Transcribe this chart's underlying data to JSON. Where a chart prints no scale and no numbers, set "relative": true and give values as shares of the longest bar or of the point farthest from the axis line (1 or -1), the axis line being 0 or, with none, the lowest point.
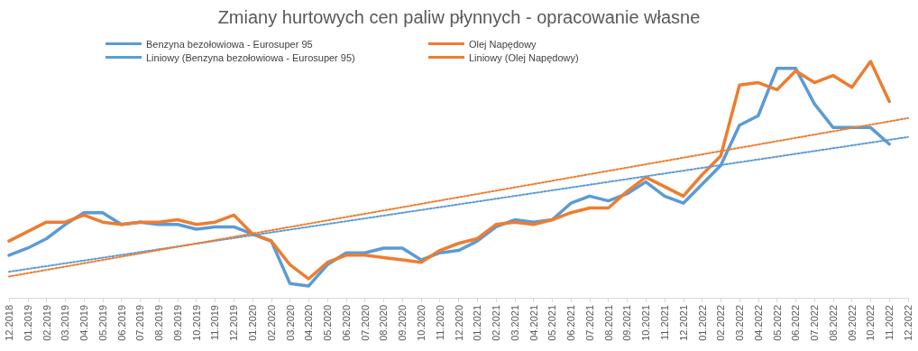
{
  "chart_data": {
    "type": "line",
    "title": "Zmiany hurtowych cen paliw płynnych - opracowanie własne",
    "relative": true,
    "legend": "top",
    "grid": false,
    "marker": "none",
    "categories": [
      "12.2018",
      "01.2019",
      "02.2019",
      "03.2019",
      "04.2019",
      "05.2019",
      "06.2019",
      "07.2019",
      "08.2019",
      "09.2019",
      "10.2019",
      "11.2019",
      "12.2019",
      "01.2020",
      "02.2020",
      "03.2020",
      "04.2020",
      "05.2020",
      "06.2020",
      "07.2020",
      "08.2020",
      "09.2020",
      "10.2020",
      "11.2020",
      "12.2020",
      "01.2021",
      "02.2021",
      "03.2021",
      "04.2021",
      "05.2021",
      "06.2021",
      "07.2021",
      "08.2021",
      "09.2021",
      "10.2021",
      "11.2021",
      "12.2021",
      "01.2022",
      "02.2022",
      "03.2022",
      "04.2022",
      "05.2022",
      "06.2022",
      "07.2022",
      "08.2022",
      "09.2022",
      "10.2022",
      "11.2022",
      "12.2022"
    ],
    "series": [
      {
        "name": "Benzyna bezołowiowa - Eurosuper 95",
        "color": "#5b9bd5",
        "line_style": "solid",
        "values": [
          0.18,
          0.21,
          0.25,
          0.31,
          0.36,
          0.36,
          0.31,
          0.32,
          0.31,
          0.31,
          0.29,
          0.3,
          0.3,
          0.27,
          0.24,
          0.06,
          0.05,
          0.14,
          0.19,
          0.19,
          0.21,
          0.21,
          0.16,
          0.19,
          0.2,
          0.24,
          0.3,
          0.33,
          0.32,
          0.33,
          0.4,
          0.43,
          0.41,
          0.44,
          0.49,
          0.43,
          0.4,
          0.48,
          0.56,
          0.73,
          0.77,
          0.97,
          0.97,
          0.82,
          0.72,
          0.72,
          0.72,
          0.65,
          null
        ]
      },
      {
        "name": "Olej Napędowy",
        "color": "#ed7d31",
        "line_style": "solid",
        "values": [
          0.24,
          0.28,
          0.32,
          0.32,
          0.35,
          0.32,
          0.31,
          0.32,
          0.32,
          0.33,
          0.31,
          0.32,
          0.35,
          0.27,
          0.24,
          0.14,
          0.08,
          0.15,
          0.18,
          0.18,
          0.17,
          0.16,
          0.15,
          0.2,
          0.23,
          0.25,
          0.31,
          0.32,
          0.31,
          0.33,
          0.36,
          0.38,
          0.38,
          0.45,
          0.51,
          0.47,
          0.43,
          0.52,
          0.6,
          0.9,
          0.91,
          0.88,
          0.96,
          0.91,
          0.94,
          0.89,
          1,
          0.83,
          null
        ]
      },
      {
        "name": "Liniowy (Benzyna bezołowiowa - Eurosuper 95)",
        "type": "line",
        "color": "#5b9bd5",
        "line_style": "dotted",
        "x": [
          "12.2018",
          "12.2022"
        ],
        "values": [
          0.11,
          0.68
        ]
      },
      {
        "name": "Liniowy (Olej Napędowy)",
        "type": "line",
        "color": "#ed7d31",
        "line_style": "dotted",
        "x": [
          "12.2018",
          "12.2022"
        ],
        "values": [
          0.09,
          0.76
        ]
      }
    ]
  }
}
